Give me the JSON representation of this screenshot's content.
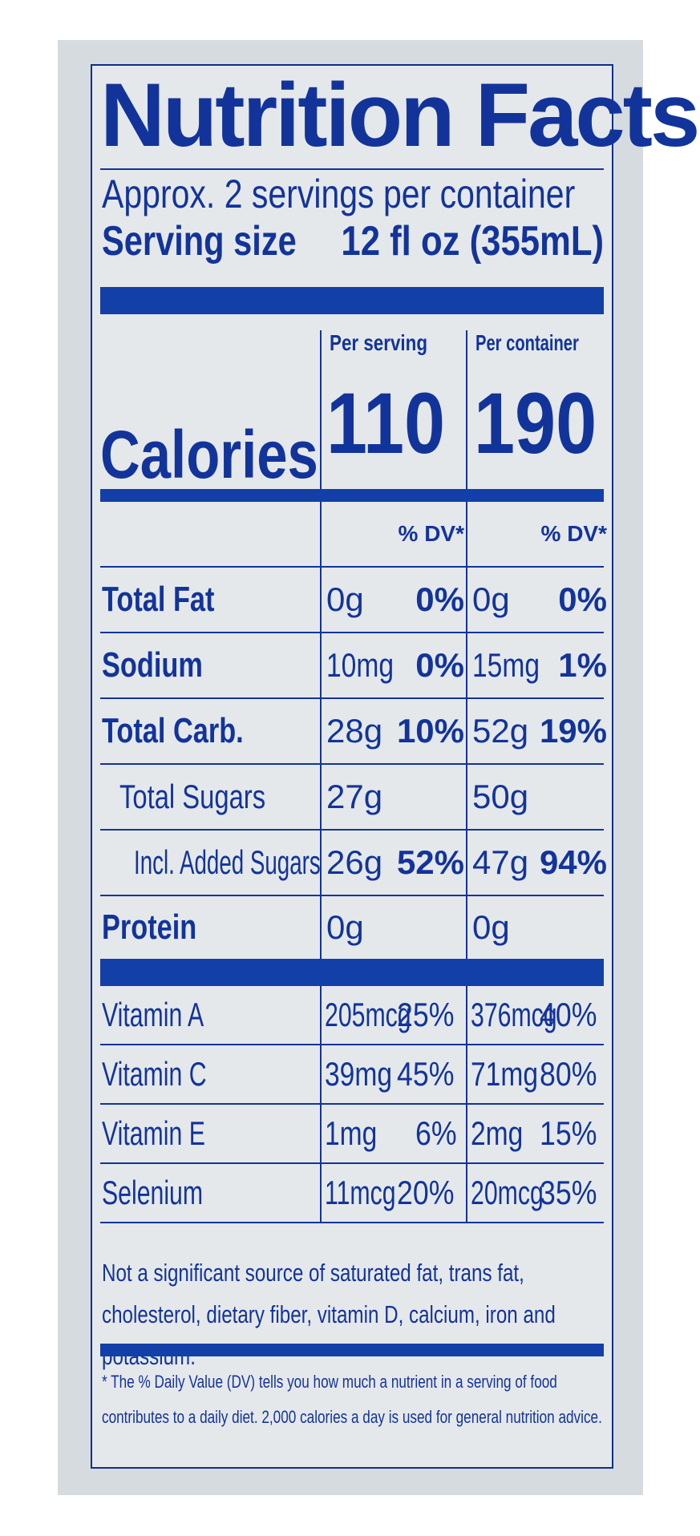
{
  "title": "Nutrition Facts",
  "servings_per_container": "Approx. 2 servings per container",
  "serving_size_label": "Serving size",
  "serving_size_value": "12 fl oz (355mL)",
  "columns": {
    "per_serving": "Per serving",
    "per_container": "Per container"
  },
  "calories": {
    "label": "Calories",
    "per_serving": "110",
    "per_container": "190"
  },
  "dv_header": "% DV*",
  "nutrients": [
    {
      "name": "Total Fat",
      "serving_amount": "0g",
      "serving_dv": "0%",
      "container_amount": "0g",
      "container_dv": "0%"
    },
    {
      "name": "Sodium",
      "serving_amount": "10mg",
      "serving_dv": "0%",
      "container_amount": "15mg",
      "container_dv": "1%"
    },
    {
      "name": "Total Carb.",
      "serving_amount": "28g",
      "serving_dv": "10%",
      "container_amount": "52g",
      "container_dv": "19%"
    },
    {
      "name": "Total Sugars",
      "serving_amount": "27g",
      "serving_dv": "",
      "container_amount": "50g",
      "container_dv": ""
    },
    {
      "name": "Incl. Added Sugars",
      "serving_amount": "26g",
      "serving_dv": "52%",
      "container_amount": "47g",
      "container_dv": "94%"
    },
    {
      "name": "Protein",
      "serving_amount": "0g",
      "serving_dv": "",
      "container_amount": "0g",
      "container_dv": ""
    }
  ],
  "vitamins": [
    {
      "name": "Vitamin A",
      "serving_amount": "205mcg",
      "serving_dv": "25%",
      "container_amount": "376mcg",
      "container_dv": "40%"
    },
    {
      "name": "Vitamin C",
      "serving_amount": "39mg",
      "serving_dv": "45%",
      "container_amount": "71mg",
      "container_dv": "80%"
    },
    {
      "name": "Vitamin E",
      "serving_amount": "1mg",
      "serving_dv": "6%",
      "container_amount": "2mg",
      "container_dv": "15%"
    },
    {
      "name": "Selenium",
      "serving_amount": "11mcg",
      "serving_dv": "20%",
      "container_amount": "20mcg",
      "container_dv": "35%"
    }
  ],
  "not_significant": "Not a significant source of saturated fat, trans fat, cholesterol, dietary fiber, vitamin D, calcium, iron and potassium.",
  "dv_footnote": "* The % Daily Value (DV) tells you how much a nutrient in a serving of food contributes to a daily diet. 2,000 calories a day is used for general nutrition advice."
}
